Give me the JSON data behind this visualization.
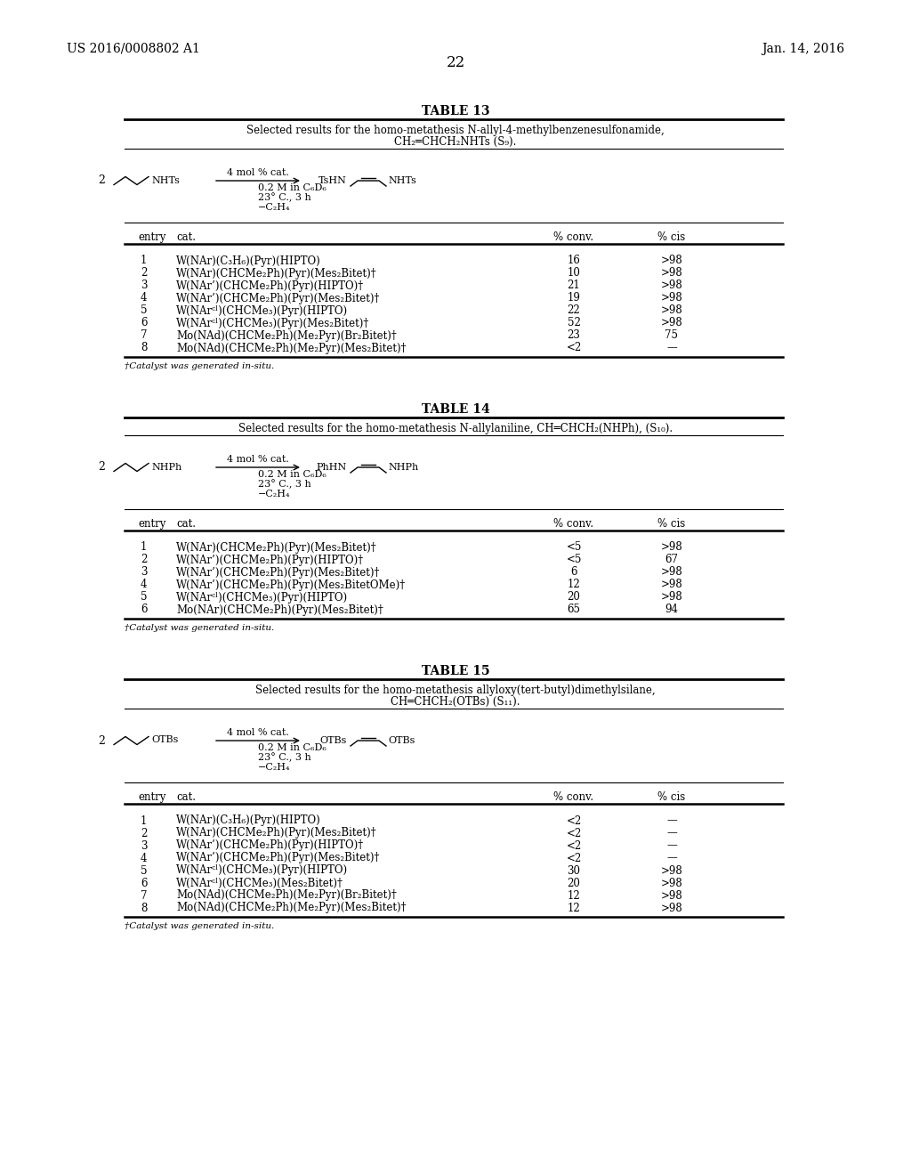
{
  "header_left": "US 2016/0008802 A1",
  "header_right": "Jan. 14, 2016",
  "page_number": "22",
  "background_color": "#ffffff",
  "table13": {
    "title": "TABLE 13",
    "subtitle_line1": "Selected results for the homo-metathesis N-allyl-4-methylbenzenesulfonamide,",
    "subtitle_line2": "CH₂═CHCH₂NHTs (S₉).",
    "left_group": "NHTs",
    "left_label": "2",
    "conditions": [
      "4 mol % cat.",
      "0.2 M in C₆D₆",
      "23° C., 3 h",
      "−C₂H₄"
    ],
    "right_label_left": "TsHN",
    "right_label_right": "NHTs",
    "col_headers": [
      "entry",
      "cat.",
      "% conv.",
      "% cis"
    ],
    "rows": [
      [
        "1",
        "W(NAr)(C₃H₆)(Pyr)(HIPTO)",
        "16",
        ">98"
      ],
      [
        "2",
        "W(NAr)(CHCMe₂Ph)(Pyr)(Mes₂Bitet)†",
        "10",
        ">98"
      ],
      [
        "3",
        "W(NAr’)(CHCMe₂Ph)(Pyr)(HIPTO)†",
        "21",
        ">98"
      ],
      [
        "4",
        "W(NAr’)(CHCMe₂Ph)(Pyr)(Mes₂Bitet)†",
        "19",
        ">98"
      ],
      [
        "5",
        "W(NArᶜˡ)(CHCMe₃)(Pyr)(HIPTO)",
        "22",
        ">98"
      ],
      [
        "6",
        "W(NArᶜˡ)(CHCMe₃)(Pyr)(Mes₂Bitet)†",
        "52",
        ">98"
      ],
      [
        "7",
        "Mo(NAd)(CHCMe₂Ph)(Me₂Pyr)(Br₂Bitet)†",
        "23",
        "75"
      ],
      [
        "8",
        "Mo(NAd)(CHCMe₂Ph)(Me₂Pyr)(Mes₂Bitet)†",
        "<2",
        "—"
      ]
    ],
    "footnote": "†Catalyst was generated in-situ."
  },
  "table14": {
    "title": "TABLE 14",
    "subtitle_line1": "Selected results for the homo-metathesis N-allylaniline, CH═CHCH₂(NHPh), (S₁₀).",
    "subtitle_line2": null,
    "left_group": "NHPh",
    "left_label": "2",
    "conditions": [
      "4 mol % cat.",
      "0.2 M in C₆D₆",
      "23° C., 3 h",
      "−C₂H₄"
    ],
    "right_label_left": "PhHN",
    "right_label_right": "NHPh",
    "col_headers": [
      "entry",
      "cat.",
      "% conv.",
      "% cis"
    ],
    "rows": [
      [
        "1",
        "W(NAr)(CHCMe₂Ph)(Pyr)(Mes₂Bitet)†",
        "<5",
        ">98"
      ],
      [
        "2",
        "W(NAr’)(CHCMe₂Ph)(Pyr)(HIPTO)†",
        "<5",
        "67"
      ],
      [
        "3",
        "W(NAr’)(CHCMe₂Ph)(Pyr)(Mes₂Bitet)†",
        "6",
        ">98"
      ],
      [
        "4",
        "W(NAr’)(CHCMe₂Ph)(Pyr)(Mes₂BitetOMe)†",
        "12",
        ">98"
      ],
      [
        "5",
        "W(NArᶜˡ)(CHCMe₃)(Pyr)(HIPTO)",
        "20",
        ">98"
      ],
      [
        "6",
        "Mo(NAr)(CHCMe₂Ph)(Pyr)(Mes₂Bitet)†",
        "65",
        "94"
      ]
    ],
    "footnote": "†Catalyst was generated in-situ."
  },
  "table15": {
    "title": "TABLE 15",
    "subtitle_line1": "Selected results for the homo-metathesis allyloxy(tert-butyl)dimethylsilane,",
    "subtitle_line2": "CH═CHCH₂(OTBs) (S₁₁).",
    "left_group": "OTBs",
    "left_label": "2",
    "conditions": [
      "4 mol % cat.",
      "0.2 M in C₆D₆",
      "23° C., 3 h",
      "−C₂H₄"
    ],
    "right_label_left": "OTBs",
    "right_label_right": "OTBs",
    "col_headers": [
      "entry",
      "cat.",
      "% conv.",
      "% cis"
    ],
    "rows": [
      [
        "1",
        "W(NAr)(C₃H₆)(Pyr)(HIPTO)",
        "<2",
        "—"
      ],
      [
        "2",
        "W(NAr)(CHCMe₂Ph)(Pyr)(Mes₂Bitet)†",
        "<2",
        "—"
      ],
      [
        "3",
        "W(NAr’)(CHCMe₂Ph)(Pyr)(HIPTO)†",
        "<2",
        "—"
      ],
      [
        "4",
        "W(NAr’)(CHCMe₂Ph)(Pyr)(Mes₂Bitet)†",
        "<2",
        "—"
      ],
      [
        "5",
        "W(NArᶜˡ)(CHCMe₃)(Pyr)(HIPTO)",
        "30",
        ">98"
      ],
      [
        "6",
        "W(NArᶜˡ)(CHCMe₃)(Mes₂Bitet)†",
        "20",
        ">98"
      ],
      [
        "7",
        "Mo(NAd)(CHCMe₂Ph)(Me₂Pyr)(Br₂Bitet)†",
        "12",
        ">98"
      ],
      [
        "8",
        "Mo(NAd)(CHCMe₂Ph)(Me₂Pyr)(Mes₂Bitet)†",
        "12",
        ">98"
      ]
    ],
    "footnote": "†Catalyst was generated in-situ."
  }
}
